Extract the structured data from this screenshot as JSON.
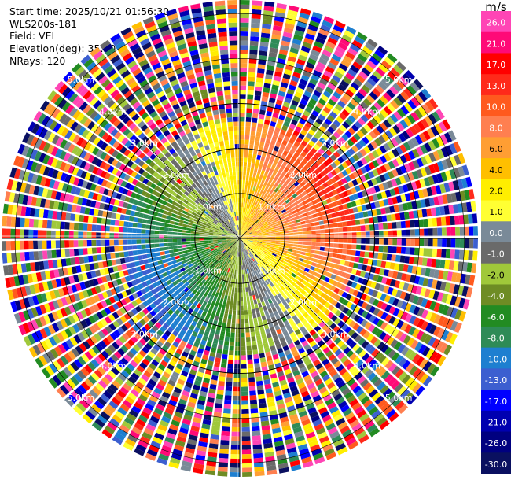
{
  "header": {
    "start_time": "Start time: 2025/10/21 01:56:30",
    "instrument": "WLS200s-181",
    "field": "Field: VEL",
    "elevation": "Elevation(deg): 35.00",
    "nrays": "NRays: 120"
  },
  "colorbar": {
    "unit": "m/s",
    "levels": [
      {
        "label": "26.0",
        "color": "#ff45b5"
      },
      {
        "label": "21.0",
        "color": "#ff0a77"
      },
      {
        "label": "17.0",
        "color": "#ff0000"
      },
      {
        "label": "13.0",
        "color": "#ff2a1a"
      },
      {
        "label": "10.0",
        "color": "#ff5a1e"
      },
      {
        "label": "8.0",
        "color": "#ff7f50"
      },
      {
        "label": "6.0",
        "color": "#ff9e33"
      },
      {
        "label": "4.0",
        "color": "#ffbf00"
      },
      {
        "label": "2.0",
        "color": "#ffee00"
      },
      {
        "label": "1.0",
        "color": "#ffff33"
      },
      {
        "label": "0.0",
        "color": "#7a8a98"
      },
      {
        "label": "-1.0",
        "color": "#6a6a6a"
      },
      {
        "label": "-2.0",
        "color": "#a0c83a"
      },
      {
        "label": "-4.0",
        "color": "#6e8c24"
      },
      {
        "label": "-6.0",
        "color": "#228b22"
      },
      {
        "label": "-8.0",
        "color": "#2e8b57"
      },
      {
        "label": "-10.0",
        "color": "#1e7fd0"
      },
      {
        "label": "-13.0",
        "color": "#3c5fd0"
      },
      {
        "label": "-17.0",
        "color": "#0000ff"
      },
      {
        "label": "-21.0",
        "color": "#0000b0"
      },
      {
        "label": "-26.0",
        "color": "#000080"
      },
      {
        "label": "-30.0",
        "color": "#0a1060"
      }
    ]
  },
  "chart_data": {
    "type": "heatmap",
    "projection": "polar PPI",
    "nrays": 120,
    "range_rings_km": [
      1.0,
      2.0,
      3.0,
      4.0,
      5.0
    ],
    "ring_labels": [
      "1.0km",
      "2.0km",
      "3.0km",
      "4.0km",
      "5.0km"
    ],
    "max_range_km": 5.3,
    "field": "VEL",
    "unit": "m/s",
    "pattern": {
      "inner_clean_range_km": 2.6,
      "upper_right_sector": "positive (yellow to red)",
      "lower_left_sector": "negative (green to blue)",
      "outer_ranges": "noisy, random colors"
    }
  }
}
